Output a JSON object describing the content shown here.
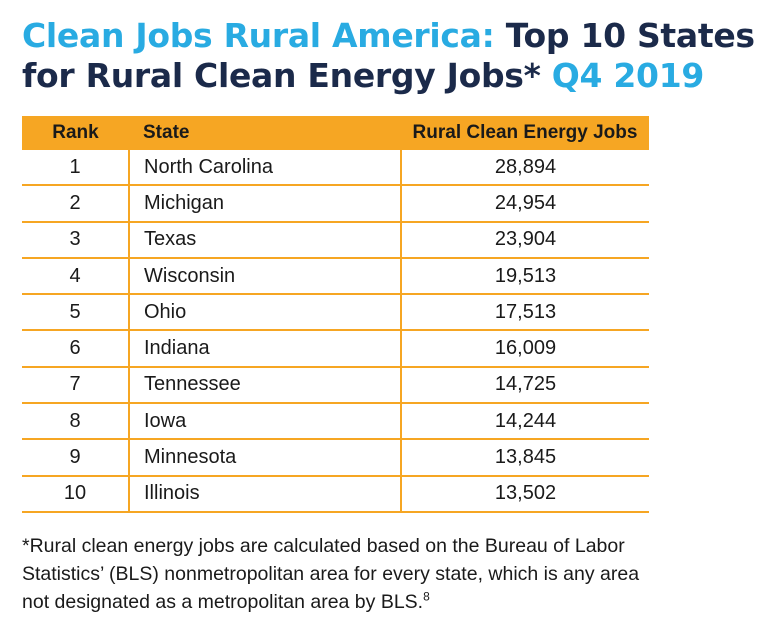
{
  "title": {
    "accent_part": "Clean Jobs Rural America:",
    "main_part": "Top 10 States for Rural Clean Energy Jobs*",
    "period": "Q4 2019"
  },
  "colors": {
    "accent": "#29abe2",
    "title_dark": "#1b2a4a",
    "table_header": "#f6a623"
  },
  "chart_data": {
    "type": "table",
    "columns": [
      "Rank",
      "State",
      "Rural Clean Energy Jobs"
    ],
    "rows": [
      {
        "rank": "1",
        "state": "North Carolina",
        "jobs": "28,894"
      },
      {
        "rank": "2",
        "state": "Michigan",
        "jobs": "24,954"
      },
      {
        "rank": "3",
        "state": "Texas",
        "jobs": "23,904"
      },
      {
        "rank": "4",
        "state": "Wisconsin",
        "jobs": "19,513"
      },
      {
        "rank": "5",
        "state": "Ohio",
        "jobs": "17,513"
      },
      {
        "rank": "6",
        "state": "Indiana",
        "jobs": "16,009"
      },
      {
        "rank": "7",
        "state": "Tennessee",
        "jobs": "14,725"
      },
      {
        "rank": "8",
        "state": "Iowa",
        "jobs": "14,244"
      },
      {
        "rank": "9",
        "state": "Minnesota",
        "jobs": "13,845"
      },
      {
        "rank": "10",
        "state": "Illinois",
        "jobs": "13,502"
      }
    ]
  },
  "footnote": {
    "text": "*Rural clean energy jobs are calculated based on the Bureau of Labor Statistics’ (BLS) nonmetropolitan area for every state, which is any area not designated as a metropolitan area by BLS.",
    "ref": "8"
  }
}
